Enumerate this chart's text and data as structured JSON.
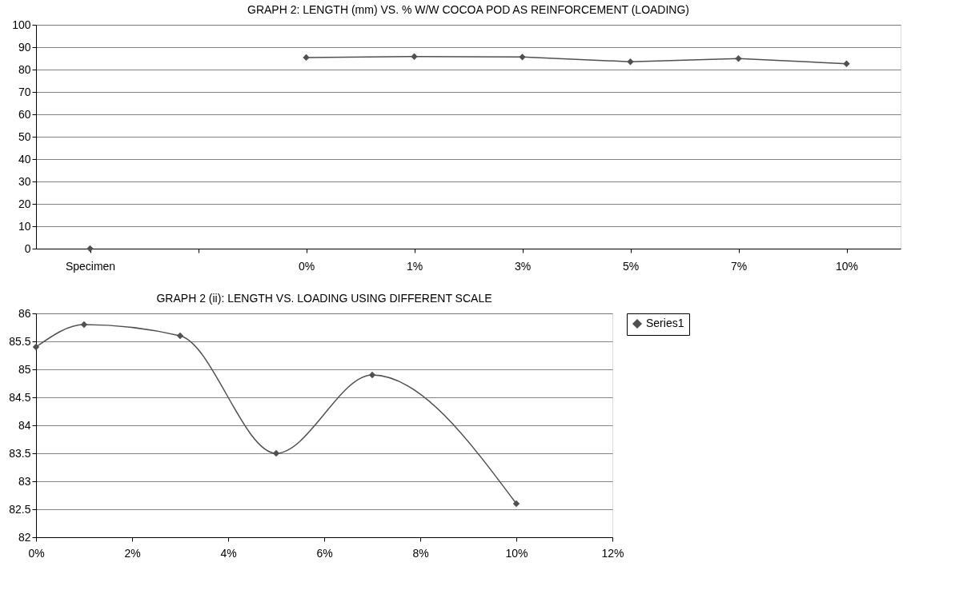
{
  "chart_data": [
    {
      "type": "line",
      "title": "GRAPH 2: LENGTH (mm) VS. % W/W COCOA POD AS REINFORCEMENT (LOADING)",
      "categories": [
        "Specimen",
        null,
        "0%",
        "1%",
        "3%",
        "5%",
        "7%",
        "10%"
      ],
      "series": [
        {
          "color": "#505050",
          "values": [
            0,
            null,
            85.4,
            85.8,
            85.6,
            83.5,
            84.9,
            82.6
          ]
        }
      ],
      "ylim": [
        0,
        100
      ],
      "yticks": [
        0,
        10,
        20,
        30,
        40,
        50,
        60,
        70,
        80,
        90,
        100
      ],
      "grid": "y",
      "marker": "diamond",
      "line_style": "solid"
    },
    {
      "type": "line",
      "title": "GRAPH 2 (ii): LENGTH VS. LOADING USING DIFFERENT SCALE",
      "x": [
        0,
        1,
        3,
        5,
        7,
        10
      ],
      "series": [
        {
          "name": "Series1",
          "color": "#505050",
          "values": [
            85.4,
            85.8,
            85.6,
            83.5,
            84.9,
            82.6
          ]
        }
      ],
      "xlim": [
        0,
        12
      ],
      "xticks": [
        {
          "value": 0,
          "label": "0%"
        },
        {
          "value": 2,
          "label": "2%"
        },
        {
          "value": 4,
          "label": "4%"
        },
        {
          "value": 6,
          "label": "6%"
        },
        {
          "value": 8,
          "label": "8%"
        },
        {
          "value": 10,
          "label": "10%"
        },
        {
          "value": 12,
          "label": "12%"
        }
      ],
      "ylim": [
        82,
        86
      ],
      "yticks": [
        82,
        82.5,
        83,
        83.5,
        84,
        84.5,
        85,
        85.5,
        86
      ],
      "grid": "y",
      "legend": "right",
      "marker": "diamond",
      "line_style": "solid"
    }
  ]
}
